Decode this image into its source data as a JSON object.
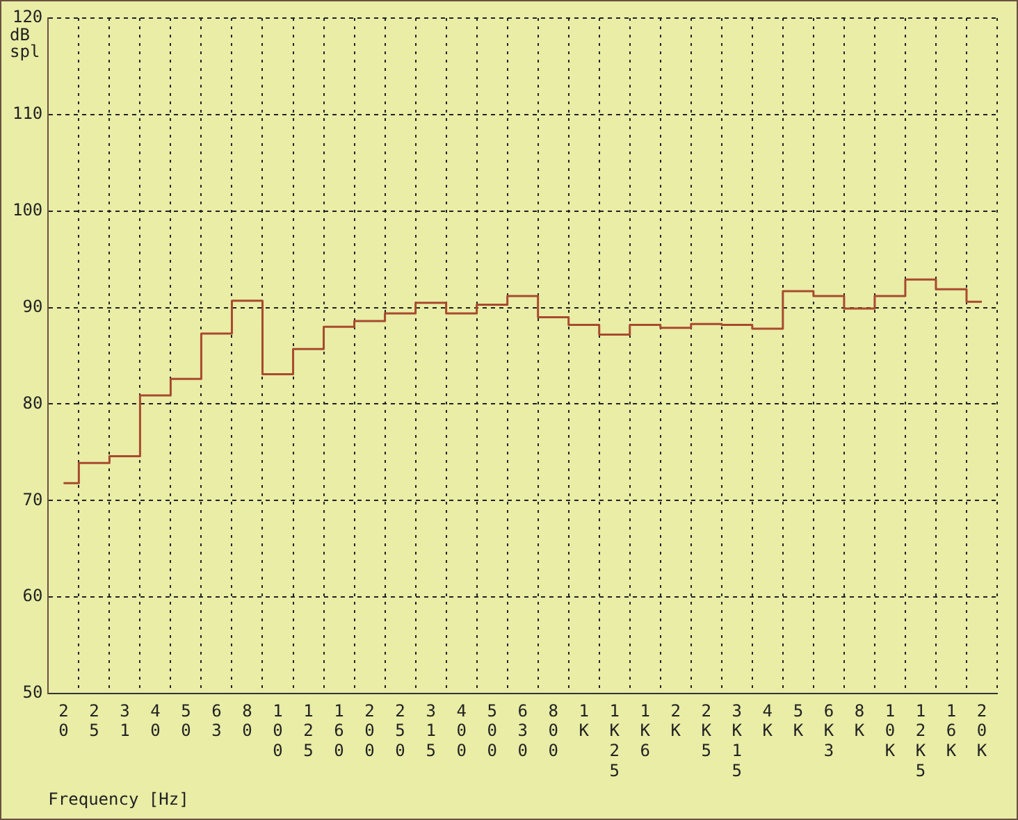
{
  "chart_data": {
    "type": "step",
    "xlabel": "Frequency [Hz]",
    "ylabel": "dB spl",
    "categories": [
      "20",
      "25",
      "31",
      "40",
      "50",
      "63",
      "80",
      "100",
      "125",
      "160",
      "200",
      "250",
      "315",
      "400",
      "500",
      "630",
      "800",
      "1K",
      "1K25",
      "1K6",
      "2K",
      "2K5",
      "3K15",
      "4K",
      "5K",
      "6K3",
      "8K",
      "10K",
      "12K5",
      "16K",
      "20K"
    ],
    "series": [
      {
        "color": "#a84a2e",
        "values": [
          71.8,
          73.9,
          74.6,
          80.9,
          82.6,
          87.3,
          90.7,
          83.1,
          85.7,
          88.0,
          88.6,
          89.4,
          90.5,
          89.4,
          90.3,
          91.2,
          89.0,
          88.2,
          87.2,
          88.2,
          87.9,
          88.3,
          88.2,
          87.8,
          91.7,
          91.2,
          89.9,
          91.2,
          92.9,
          91.9,
          90.6
        ]
      }
    ],
    "ylim": [
      50,
      120
    ],
    "yticks": [
      50,
      60,
      70,
      80,
      90,
      100,
      110,
      120
    ],
    "grid": true,
    "line_style": "solid",
    "legend": false
  }
}
